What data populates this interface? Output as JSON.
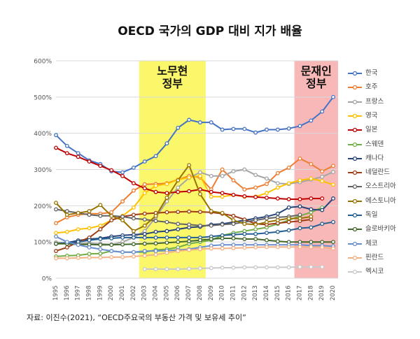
{
  "title": "OECD 국가의 GDP 대비 지가 배율",
  "source": "자료: 이진수(2021), “OECD주요국의 부동산 가격 및 보유세 추이”",
  "colors": {
    "nomuhyun_band": "#fbf76a",
    "moonjaein_band": "#f8b8b8",
    "grid": "#d9d9d9",
    "axis_text": "#555555"
  },
  "chart_data": {
    "type": "line",
    "title": "OECD 국가의 GDP 대비 지가 배율",
    "xlabel": "",
    "ylabel": "",
    "x": [
      "1995",
      "1996",
      "1997",
      "1998",
      "1999",
      "2000",
      "2001",
      "2002",
      "2003",
      "2004",
      "2005",
      "2006",
      "2007",
      "2008",
      "2009",
      "2010",
      "2011",
      "2012",
      "2013",
      "2014",
      "2015",
      "2016",
      "2017",
      "2018",
      "2019",
      "2020"
    ],
    "y_ticks": [
      "0%",
      "100%",
      "200%",
      "300%",
      "400%",
      "500%",
      "600%"
    ],
    "ylim": [
      0,
      600
    ],
    "grid": true,
    "legend_position": "right",
    "annotations": [
      {
        "label": "노무현\n정부",
        "from": "2003",
        "to": "2008",
        "color": "#fbf76a"
      },
      {
        "label": "문재인\n정부",
        "from": "2017",
        "to": "2020",
        "color": "#f8b8b8"
      }
    ],
    "series": [
      {
        "name": "한국",
        "color": "#4472c4",
        "values": [
          395,
          365,
          345,
          325,
          315,
          295,
          292,
          305,
          322,
          337,
          372,
          415,
          437,
          430,
          430,
          410,
          412,
          412,
          402,
          410,
          410,
          413,
          420,
          435,
          460,
          500
        ]
      },
      {
        "name": "호주",
        "color": "#ed7d31",
        "values": [
          152,
          168,
          175,
          178,
          178,
          182,
          212,
          242,
          259,
          260,
          262,
          272,
          282,
          278,
          245,
          300,
          270,
          245,
          250,
          260,
          290,
          305,
          330,
          315,
          295,
          310
        ]
      },
      {
        "name": "프랑스",
        "color": "#a5a5a5",
        "values": [
          99,
          97,
          96,
          97,
          95,
          93,
          100,
          112,
          130,
          168,
          212,
          250,
          277,
          292,
          282,
          282,
          295,
          300,
          285,
          275,
          262,
          260,
          265,
          272,
          280,
          293
        ]
      },
      {
        "name": "영국",
        "color": "#ffc000",
        "values": [
          125,
          128,
          135,
          138,
          145,
          160,
          172,
          195,
          235,
          255,
          260,
          272,
          278,
          282,
          225,
          225,
          230,
          225,
          225,
          235,
          250,
          262,
          270,
          275,
          268,
          258
        ]
      },
      {
        "name": "일본",
        "color": "#c00000",
        "values": [
          360,
          345,
          335,
          322,
          310,
          298,
          282,
          262,
          248,
          238,
          235,
          238,
          240,
          245,
          238,
          235,
          230,
          226,
          224,
          222,
          220,
          218,
          218,
          220,
          220,
          null
        ]
      },
      {
        "name": "스웨덴",
        "color": "#70ad47",
        "values": [
          60,
          62,
          63,
          67,
          68,
          75,
          72,
          72,
          72,
          78,
          80,
          85,
          95,
          100,
          105,
          118,
          125,
          130,
          135,
          140,
          150,
          160,
          172,
          182,
          195,
          null
        ]
      },
      {
        "name": "캐나다",
        "color": "#264478",
        "values": [
          95,
          98,
          104,
          108,
          110,
          115,
          118,
          120,
          122,
          128,
          130,
          135,
          140,
          142,
          148,
          150,
          155,
          160,
          165,
          170,
          178,
          195,
          198,
          190,
          188,
          220
        ]
      },
      {
        "name": "네덜란드",
        "color": "#9e3d16",
        "values": [
          75,
          85,
          100,
          112,
          135,
          160,
          170,
          175,
          178,
          180,
          182,
          183,
          184,
          183,
          182,
          178,
          172,
          162,
          150,
          148,
          152,
          155,
          158,
          162,
          null,
          null
        ]
      },
      {
        "name": "오스트리아",
        "color": "#636363",
        "values": [
          190,
          185,
          180,
          175,
          172,
          172,
          170,
          165,
          162,
          158,
          155,
          150,
          148,
          145,
          145,
          148,
          150,
          155,
          160,
          165,
          168,
          170,
          175,
          null,
          null,
          null
        ]
      },
      {
        "name": "에스토니아",
        "color": "#997300",
        "values": [
          208,
          175,
          180,
          185,
          202,
          172,
          160,
          130,
          145,
          172,
          222,
          270,
          312,
          232,
          185,
          180,
          160,
          150,
          148,
          155,
          160,
          165,
          165,
          170,
          null,
          null
        ]
      },
      {
        "name": "독일",
        "color": "#255e91",
        "values": [
          95,
          97,
          100,
          105,
          108,
          110,
          112,
          112,
          112,
          112,
          112,
          112,
          112,
          112,
          115,
          118,
          120,
          122,
          122,
          125,
          128,
          132,
          138,
          140,
          150,
          155
        ]
      },
      {
        "name": "슬로바키아",
        "color": "#43682b",
        "values": [
          95,
          95,
          93,
          93,
          92,
          92,
          93,
          94,
          95,
          96,
          98,
          100,
          102,
          105,
          108,
          110,
          110,
          108,
          108,
          105,
          102,
          100,
          100,
          100,
          100,
          100
        ]
      },
      {
        "name": "체코",
        "color": "#698ed0",
        "values": [
          115,
          100,
          92,
          85,
          80,
          75,
          72,
          72,
          75,
          75,
          76,
          78,
          80,
          85,
          90,
          92,
          92,
          92,
          92,
          92,
          92,
          92,
          92,
          90,
          90,
          88
        ]
      },
      {
        "name": "핀란드",
        "color": "#f4b183",
        "values": [
          55,
          55,
          56,
          57,
          57,
          58,
          58,
          60,
          62,
          65,
          70,
          75,
          78,
          80,
          82,
          82,
          83,
          84,
          85,
          86,
          86,
          86,
          86,
          86,
          85,
          82
        ]
      },
      {
        "name": "멕시코",
        "color": "#c9c9c9",
        "values": [
          null,
          null,
          null,
          null,
          null,
          null,
          null,
          null,
          25,
          25,
          25,
          25,
          26,
          27,
          28,
          29,
          29,
          30,
          30,
          30,
          30,
          30,
          31,
          31,
          31,
          null
        ]
      }
    ]
  }
}
